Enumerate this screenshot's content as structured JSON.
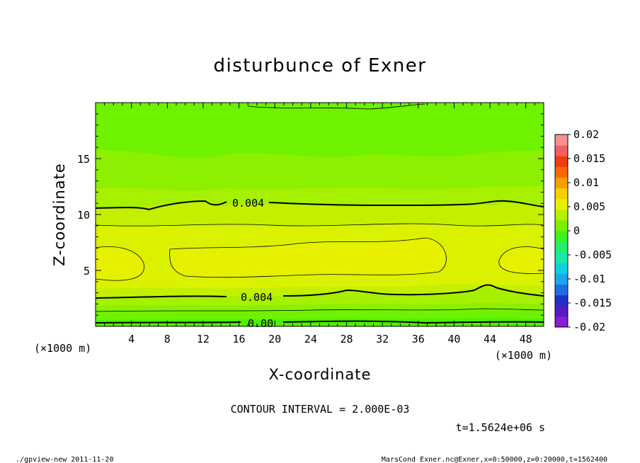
{
  "chart_data": {
    "type": "contour",
    "title": "disturbunce of Exner",
    "xlabel": "X-coordinate",
    "ylabel": "Z-coordinate",
    "x_unit": "(×1000 m)",
    "y_unit": "(×1000 m)",
    "xlim": [
      0,
      50
    ],
    "ylim": [
      0,
      20
    ],
    "x_ticks": [
      4,
      8,
      12,
      16,
      20,
      24,
      28,
      32,
      36,
      40,
      44,
      48
    ],
    "y_ticks": [
      5,
      10,
      15
    ],
    "contour_interval_text": "CONTOUR INTERVAL = 2.000E-03",
    "contour_labels": [
      "0.004",
      "0.004",
      "0.00"
    ],
    "colorbar": {
      "ticks": [
        "0.02",
        "0.015",
        "0.01",
        "0.005",
        "0",
        "-0.005",
        "-0.01",
        "-0.015",
        "-0.02"
      ],
      "min": -0.02,
      "max": 0.02,
      "colors": [
        "#8a1fd0",
        "#5a18c8",
        "#2030c8",
        "#1e6ee0",
        "#1aa6f0",
        "#10d0e0",
        "#18e8a8",
        "#22f06a",
        "#3cf220",
        "#7af000",
        "#b8f000",
        "#e8f000",
        "#f8d000",
        "#f8a000",
        "#f86a00",
        "#f03a10",
        "#f06060",
        "#f89090"
      ]
    },
    "time_text": "t=1.5624e+06 s"
  },
  "footer": {
    "left": "./gpview-new 2011-11-20",
    "right": "MarsCond_Exner.nc@Exner,x=0:50000,z=0:20000,t=1562400"
  }
}
